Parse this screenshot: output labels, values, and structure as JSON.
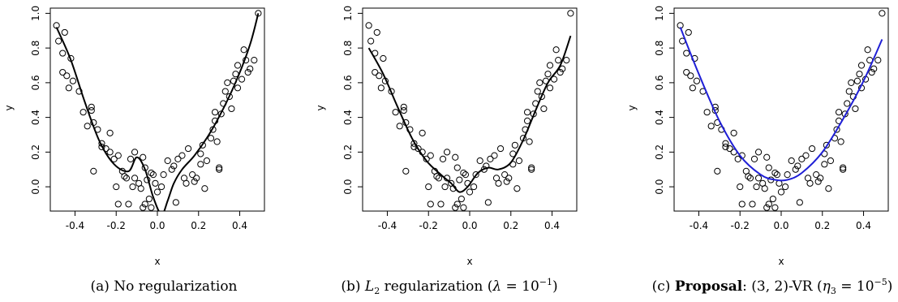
{
  "charts": [
    {
      "id": "a",
      "caption": {
        "prefix": "(a) ",
        "text": "No regularization"
      },
      "xlabel": "x",
      "ylabel": "y",
      "xticks": [
        "-0.4",
        "-0.2",
        "0.0",
        "0.2",
        "0.4"
      ],
      "yticks": [
        "0.0",
        "0.2",
        "0.4",
        "0.6",
        "0.8",
        "1.0"
      ],
      "curve_color": "#000000"
    },
    {
      "id": "b",
      "caption": {
        "prefix": "(b) ",
        "italic_var": "L",
        "sub": "2",
        "text": " regularization (",
        "greek": "λ",
        "eq": " = 10",
        "sup": "−1",
        "suffix": ")"
      },
      "xlabel": "x",
      "ylabel": "y",
      "xticks": [
        "-0.4",
        "-0.2",
        "0.0",
        "0.2",
        "0.4"
      ],
      "yticks": [
        "0.0",
        "0.2",
        "0.4",
        "0.6",
        "0.8",
        "1.0"
      ],
      "curve_color": "#000000"
    },
    {
      "id": "c",
      "caption": {
        "prefix": "(c) ",
        "bold": "Proposal",
        "text": ": (3, 2)-VR (",
        "greek": "η",
        "sub": "3",
        "eq": " = 10",
        "sup": "−5",
        "suffix": ")"
      },
      "xlabel": "x",
      "ylabel": "y",
      "xticks": [
        "-0.4",
        "-0.2",
        "0.0",
        "0.2",
        "0.4"
      ],
      "yticks": [
        "0.0",
        "0.2",
        "0.4",
        "0.6",
        "0.8",
        "1.0"
      ],
      "curve_color": "#1f1fd6"
    }
  ],
  "chart_data": [
    {
      "type": "scatter",
      "title": "",
      "xlabel": "x",
      "ylabel": "y",
      "xlim": [
        -0.52,
        0.52
      ],
      "ylim": [
        -0.14,
        1.03
      ],
      "grid": false,
      "points": [
        [
          -0.49,
          0.93
        ],
        [
          -0.48,
          0.84
        ],
        [
          -0.45,
          0.89
        ],
        [
          -0.46,
          0.77
        ],
        [
          -0.46,
          0.66
        ],
        [
          -0.44,
          0.64
        ],
        [
          -0.42,
          0.74
        ],
        [
          -0.41,
          0.61
        ],
        [
          -0.43,
          0.57
        ],
        [
          -0.38,
          0.55
        ],
        [
          -0.36,
          0.43
        ],
        [
          -0.34,
          0.35
        ],
        [
          -0.32,
          0.46
        ],
        [
          -0.32,
          0.44
        ],
        [
          -0.31,
          0.37
        ],
        [
          -0.29,
          0.33
        ],
        [
          -0.27,
          0.25
        ],
        [
          -0.27,
          0.23
        ],
        [
          -0.25,
          0.22
        ],
        [
          -0.23,
          0.31
        ],
        [
          -0.23,
          0.2
        ],
        [
          -0.21,
          0.16
        ],
        [
          -0.31,
          0.09
        ],
        [
          -0.19,
          0.18
        ],
        [
          -0.17,
          0.09
        ],
        [
          -0.16,
          0.06
        ],
        [
          -0.15,
          0.05
        ],
        [
          -0.13,
          0.16
        ],
        [
          -0.11,
          0.2
        ],
        [
          -0.11,
          0.05
        ],
        [
          -0.09,
          0.02
        ],
        [
          -0.08,
          -0.01
        ],
        [
          -0.07,
          0.17
        ],
        [
          -0.06,
          0.11
        ],
        [
          -0.05,
          0.04
        ],
        [
          -0.03,
          0.08
        ],
        [
          -0.02,
          0.07
        ],
        [
          -0.01,
          0.02
        ],
        [
          0.0,
          -0.03
        ],
        [
          -0.04,
          -0.07
        ],
        [
          -0.06,
          -0.1
        ],
        [
          -0.12,
          0.0
        ],
        [
          -0.14,
          -0.1
        ],
        [
          -0.19,
          -0.1
        ],
        [
          -0.07,
          -0.12
        ],
        [
          -0.03,
          -0.12
        ],
        [
          0.02,
          0.0
        ],
        [
          0.03,
          0.07
        ],
        [
          0.05,
          0.15
        ],
        [
          0.07,
          0.1
        ],
        [
          0.09,
          -0.09
        ],
        [
          0.1,
          0.16
        ],
        [
          0.12,
          0.18
        ],
        [
          0.13,
          0.05
        ],
        [
          0.14,
          0.02
        ],
        [
          0.15,
          0.22
        ],
        [
          0.17,
          0.07
        ],
        [
          0.18,
          0.03
        ],
        [
          0.19,
          0.05
        ],
        [
          0.21,
          0.13
        ],
        [
          0.21,
          0.19
        ],
        [
          0.22,
          0.24
        ],
        [
          0.23,
          -0.01
        ],
        [
          0.24,
          0.15
        ],
        [
          0.26,
          0.28
        ],
        [
          0.27,
          0.33
        ],
        [
          0.28,
          0.38
        ],
        [
          0.28,
          0.43
        ],
        [
          0.29,
          0.26
        ],
        [
          0.3,
          0.1
        ],
        [
          0.31,
          0.42
        ],
        [
          0.32,
          0.48
        ],
        [
          0.33,
          0.55
        ],
        [
          0.34,
          0.6
        ],
        [
          0.35,
          0.52
        ],
        [
          0.36,
          0.45
        ],
        [
          0.37,
          0.61
        ],
        [
          0.38,
          0.65
        ],
        [
          0.39,
          0.57
        ],
        [
          0.39,
          0.7
        ],
        [
          0.41,
          0.62
        ],
        [
          0.42,
          0.79
        ],
        [
          0.43,
          0.73
        ],
        [
          0.44,
          0.66
        ],
        [
          0.45,
          0.68
        ],
        [
          0.47,
          0.73
        ],
        [
          0.49,
          1.0
        ],
        [
          0.3,
          0.11
        ],
        [
          -0.2,
          0.0
        ],
        [
          0.08,
          0.12
        ]
      ],
      "fit_curve": {
        "name": "",
        "x": [
          -0.49,
          -0.42,
          -0.35,
          -0.28,
          -0.21,
          -0.14,
          -0.1,
          -0.06,
          -0.02,
          0.02,
          0.05,
          0.08,
          0.12,
          0.18,
          0.25,
          0.32,
          0.39,
          0.45,
          0.49
        ],
        "y": [
          0.92,
          0.73,
          0.48,
          0.26,
          0.13,
          0.09,
          0.17,
          0.1,
          -0.06,
          -0.16,
          -0.08,
          0.02,
          0.1,
          0.18,
          0.3,
          0.45,
          0.63,
          0.82,
          1.0
        ]
      }
    },
    {
      "type": "scatter",
      "title": "",
      "xlabel": "x",
      "ylabel": "y",
      "xlim": [
        -0.52,
        0.52
      ],
      "ylim": [
        -0.14,
        1.03
      ],
      "grid": false,
      "points": "same as panel (a)",
      "fit_curve": {
        "name": "",
        "x": [
          -0.49,
          -0.42,
          -0.35,
          -0.28,
          -0.21,
          -0.14,
          -0.09,
          -0.05,
          -0.01,
          0.04,
          0.09,
          0.14,
          0.2,
          0.26,
          0.32,
          0.38,
          0.44,
          0.49
        ],
        "y": [
          0.8,
          0.65,
          0.46,
          0.28,
          0.15,
          0.07,
          0.02,
          -0.03,
          0.0,
          0.08,
          0.11,
          0.1,
          0.14,
          0.27,
          0.44,
          0.6,
          0.7,
          0.87
        ]
      }
    },
    {
      "type": "scatter",
      "title": "",
      "xlabel": "x",
      "ylabel": "y",
      "xlim": [
        -0.52,
        0.52
      ],
      "ylim": [
        -0.14,
        1.03
      ],
      "grid": false,
      "points": "same as panel (a)",
      "fit_curve": {
        "name": "",
        "x": [
          -0.49,
          -0.4,
          -0.3,
          -0.2,
          -0.1,
          -0.03,
          0.03,
          0.1,
          0.2,
          0.3,
          0.4,
          0.49
        ],
        "y": [
          0.92,
          0.65,
          0.38,
          0.18,
          0.07,
          0.04,
          0.04,
          0.08,
          0.2,
          0.39,
          0.61,
          0.85
        ]
      }
    }
  ]
}
